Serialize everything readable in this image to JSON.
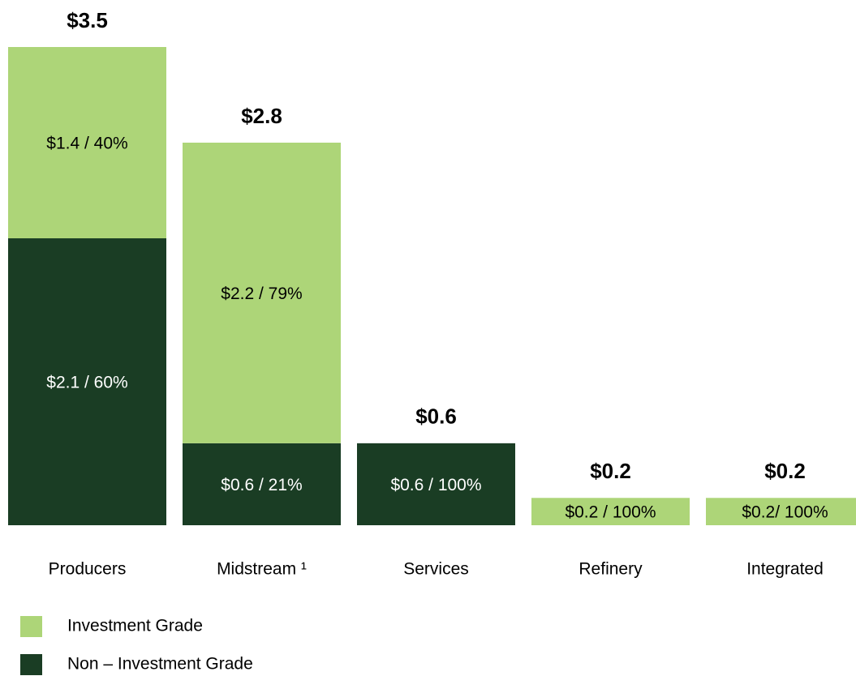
{
  "chart_data": {
    "type": "stacked_bar",
    "categories": [
      "Producers",
      "Midstream ¹",
      "Services",
      "Refinery",
      "Integrated"
    ],
    "series": [
      {
        "name": "Non – Investment Grade",
        "color": "#1a3d24",
        "values": [
          2.1,
          0.6,
          0.6,
          null,
          null
        ],
        "value_labels": [
          "$2.1 / 60%",
          "$0.6 / 21%",
          "$0.6 / 100%",
          null,
          null
        ]
      },
      {
        "name": "Investment Grade",
        "color": "#add578",
        "values": [
          1.4,
          2.2,
          null,
          0.2,
          0.2
        ],
        "value_labels": [
          "$1.4 / 40%",
          "$2.2 / 79%",
          null,
          "$0.2 / 100%",
          "$0.2/ 100%"
        ]
      }
    ],
    "totals": [
      3.5,
      2.8,
      0.6,
      0.2,
      0.2
    ],
    "total_labels": [
      "$3.5",
      "$2.8",
      "$0.6",
      "$0.2",
      "$0.2"
    ],
    "ylim": [
      0,
      3.5
    ],
    "legend_order": [
      1,
      0
    ]
  }
}
